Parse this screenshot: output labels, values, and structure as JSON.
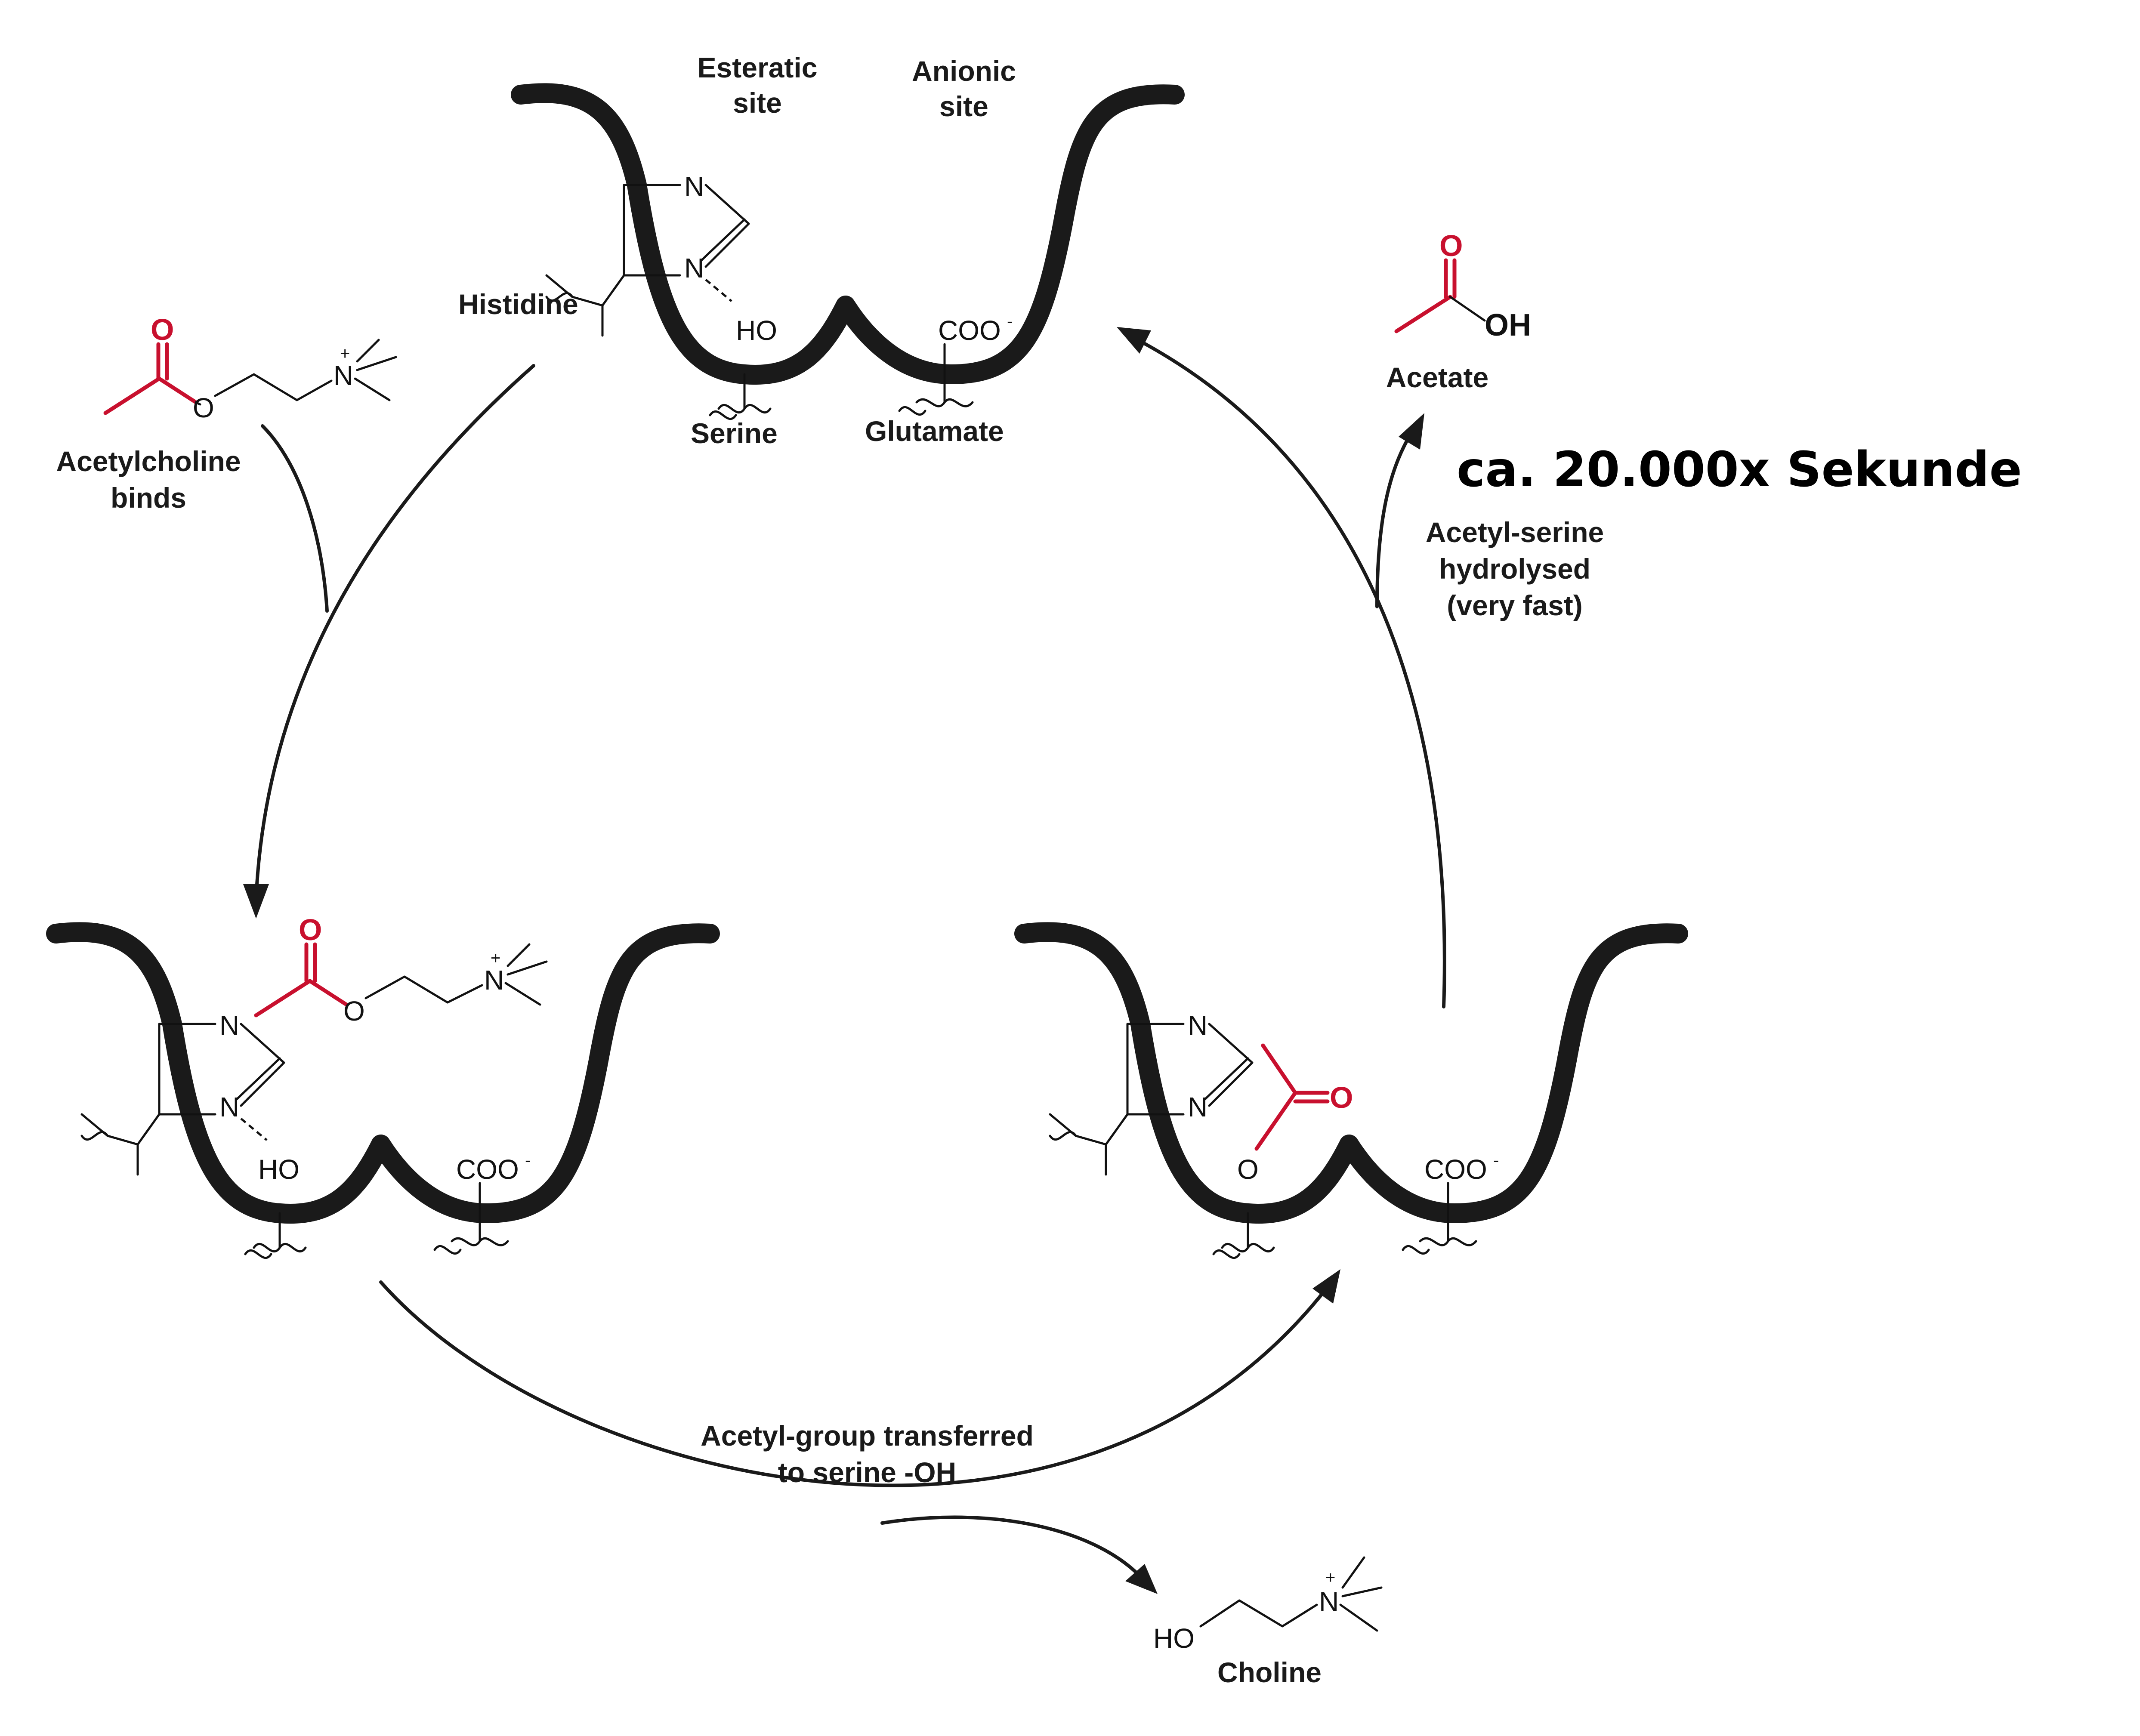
{
  "colors": {
    "substrate": "#c8102e",
    "ink": "#1a1a1a"
  },
  "title": "ca. 20.000x Sekunde",
  "sites": {
    "esteratic": [
      "Esteratic",
      "site"
    ],
    "anionic": [
      "Anionic",
      "site"
    ]
  },
  "residues": {
    "histidine": "Histidine",
    "serine": "Serine",
    "glutamate": "Glutamate"
  },
  "steps": {
    "binds": [
      "Acetylcholine",
      "binds"
    ],
    "transfer": [
      "Acetyl-group transferred",
      "to serine -OH"
    ],
    "hydrolysis": [
      "Acetyl-serine",
      "hydrolysed",
      "(very fast)"
    ]
  },
  "products": {
    "choline": "Choline",
    "acetate": "Acetate"
  },
  "atoms": {
    "N": "N",
    "O": "O",
    "HO": "HO",
    "OH": "OH",
    "COO": "COO",
    "minus": "-",
    "plus": "+"
  }
}
